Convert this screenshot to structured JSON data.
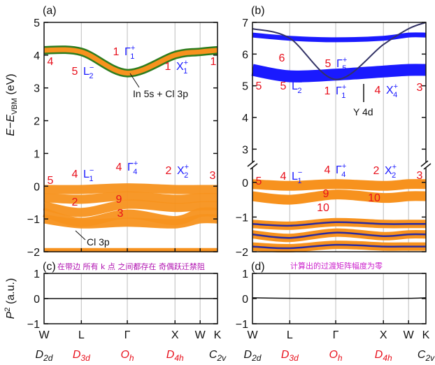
{
  "panel_labels": [
    "(a)",
    "(b)",
    "(c)",
    "(d)"
  ],
  "notes": {
    "c": "在带边 所有 k 点 之间都存在 奇偶跃迁禁阻",
    "d": "计算出的过渡矩阵幅度为零"
  },
  "colors": {
    "orange": "#f7921e",
    "green": "#2e7d1e",
    "blue": "#1a1aff",
    "red": "#e8101c",
    "purple": "#cc22cc"
  },
  "kpoints": [
    "W",
    "L",
    "Γ",
    "X",
    "W",
    "K"
  ],
  "point_groups": [
    {
      "main": "D",
      "sub": "2d",
      "color": "#111111"
    },
    {
      "main": "D",
      "sub": "3d",
      "color": "#e8101c"
    },
    {
      "main": "O",
      "sub": "h",
      "color": "#e8101c"
    },
    {
      "main": "D",
      "sub": "4h",
      "color": "#e8101c"
    },
    {
      "main": "C",
      "sub": "2v",
      "color": "#111111"
    }
  ],
  "chart_data": [
    {
      "panel": "(a)",
      "type": "line",
      "x": [
        "W",
        "L",
        "Γ",
        "X",
        "W",
        "K"
      ],
      "ylabel": "E−E_VBM (eV)",
      "ylim": [
        -2,
        5
      ],
      "yticks": [
        -2,
        -1,
        0,
        1,
        2,
        3,
        4,
        5
      ],
      "series": [
        {
          "name": "In 5s + Cl 3p",
          "values": [
            4.15,
            4.1,
            3.45,
            4.0,
            4.1,
            4.15
          ]
        },
        {
          "name": "Cl 3p",
          "values": [
            -0.1,
            -0.1,
            -0.05,
            -0.1,
            -0.1,
            -0.1
          ]
        },
        {
          "values": [
            -0.35,
            -0.4,
            -0.3,
            -0.4,
            -0.35,
            -0.35
          ]
        },
        {
          "values": [
            -0.6,
            -0.8,
            -0.55,
            -0.65,
            -0.6,
            -0.6
          ]
        },
        {
          "values": [
            -0.8,
            -1.1,
            -0.85,
            -1.05,
            -0.8,
            -0.8
          ]
        },
        {
          "values": [
            -1.0,
            -1.15,
            -1.1,
            -1.15,
            -1.0,
            -1.0
          ]
        }
      ],
      "annotations": {
        "cb_labels": [
          {
            "at": "W",
            "text": "4"
          },
          {
            "at": "L",
            "text": "5",
            "sym": "L",
            "sup": "−",
            "sub": "2"
          },
          {
            "at": "Γ",
            "text": "1",
            "sym": "Γ",
            "sup": "+",
            "sub": "1"
          },
          {
            "at": "X",
            "text": "1",
            "sym": "X",
            "sup": "+",
            "sub": "1"
          },
          {
            "at": "K",
            "text": "1"
          }
        ],
        "vb_labels": [
          {
            "at": "W",
            "text": "5"
          },
          {
            "at": "L",
            "text": "4",
            "sym": "L",
            "sup": "−",
            "sub": "1"
          },
          {
            "at": "Γ",
            "text": "4",
            "sym": "Γ",
            "sup": "+",
            "sub": "4"
          },
          {
            "at": "X",
            "text": "2",
            "sym": "X",
            "sup": "+",
            "sub": "2"
          },
          {
            "at": "K",
            "text": "3"
          }
        ],
        "inner_numbers": [
          "2",
          "9",
          "3"
        ],
        "orbital_label_cb": "In 5s + Cl 3p",
        "orbital_label_vb": "Cl 3p"
      }
    },
    {
      "panel": "(b)",
      "type": "line",
      "x": [
        "W",
        "L",
        "Γ",
        "X",
        "W",
        "K"
      ],
      "ylim_upper": [
        2.5,
        7
      ],
      "yticks_upper": [
        3,
        4,
        5,
        6,
        7
      ],
      "ylim_lower": [
        -2,
        0.5
      ],
      "yticks_lower": [
        -2,
        -1,
        0
      ],
      "series": [
        {
          "name": "Y 4d",
          "values": [
            5.5,
            5.3,
            5.35,
            5.45,
            5.5,
            5.5
          ]
        },
        {
          "values": [
            6.6,
            6.5,
            6.45,
            6.5,
            6.6,
            6.6
          ]
        },
        {
          "values": [
            6.8,
            6.5,
            5.2,
            6.3,
            6.8,
            7.0
          ]
        },
        {
          "values": [
            -0.05,
            -0.1,
            -0.05,
            -0.1,
            -0.05,
            -0.05
          ]
        },
        {
          "values": [
            -0.4,
            -0.5,
            -0.35,
            -0.45,
            -0.4,
            -0.4
          ]
        },
        {
          "values": [
            -1.2,
            -1.25,
            -1.15,
            -1.2,
            -1.2,
            -1.2
          ]
        },
        {
          "values": [
            -1.5,
            -1.6,
            -1.45,
            -1.55,
            -1.5,
            -1.5
          ]
        },
        {
          "values": [
            -1.85,
            -1.9,
            -1.8,
            -1.85,
            -1.85,
            -1.85
          ]
        }
      ],
      "annotations": {
        "cb_labels": [
          {
            "at": "W",
            "text": "5"
          },
          {
            "at": "L",
            "text": "5",
            "sym": "L",
            "sup": "−",
            "sub": "2"
          },
          {
            "at": "Γ",
            "text": "1",
            "sym": "Γ",
            "sup": "+",
            "sub": "1"
          },
          {
            "at": "X",
            "text": "4",
            "sym": "X",
            "sup": "+",
            "sub": "4"
          },
          {
            "at": "K",
            "text": "3"
          }
        ],
        "upper_labels": [
          {
            "text": "6"
          },
          {
            "text": "5",
            "sym": "Γ",
            "sup": "+",
            "sub": "5"
          }
        ],
        "vb_labels": [
          {
            "at": "W",
            "text": "5"
          },
          {
            "at": "L",
            "text": "4",
            "sym": "L",
            "sup": "−",
            "sub": "1"
          },
          {
            "at": "Γ",
            "text": "4",
            "sym": "Γ",
            "sup": "+",
            "sub": "4"
          },
          {
            "at": "X",
            "text": "2",
            "sym": "X",
            "sup": "+",
            "sub": "2"
          },
          {
            "at": "K",
            "text": "3"
          }
        ],
        "inner_numbers": [
          "9",
          "10",
          "10"
        ],
        "orbital_label": "Y 4d"
      }
    },
    {
      "panel": "(c)",
      "type": "line",
      "x": [
        "W",
        "L",
        "Γ",
        "X",
        "W",
        "K"
      ],
      "ylabel": "P² (a.u.)",
      "ylim": [
        -1,
        1
      ],
      "yticks": [
        -1,
        0,
        1
      ],
      "series": [
        {
          "values": [
            0,
            0,
            0,
            0,
            0,
            0
          ]
        }
      ]
    },
    {
      "panel": "(d)",
      "type": "line",
      "x": [
        "W",
        "L",
        "Γ",
        "X",
        "W",
        "K"
      ],
      "ylim": [
        -1,
        1
      ],
      "yticks": [
        -1,
        0,
        1
      ],
      "series": [
        {
          "values": [
            0.03,
            0.01,
            0,
            0,
            0.01,
            0.03
          ]
        }
      ]
    }
  ]
}
